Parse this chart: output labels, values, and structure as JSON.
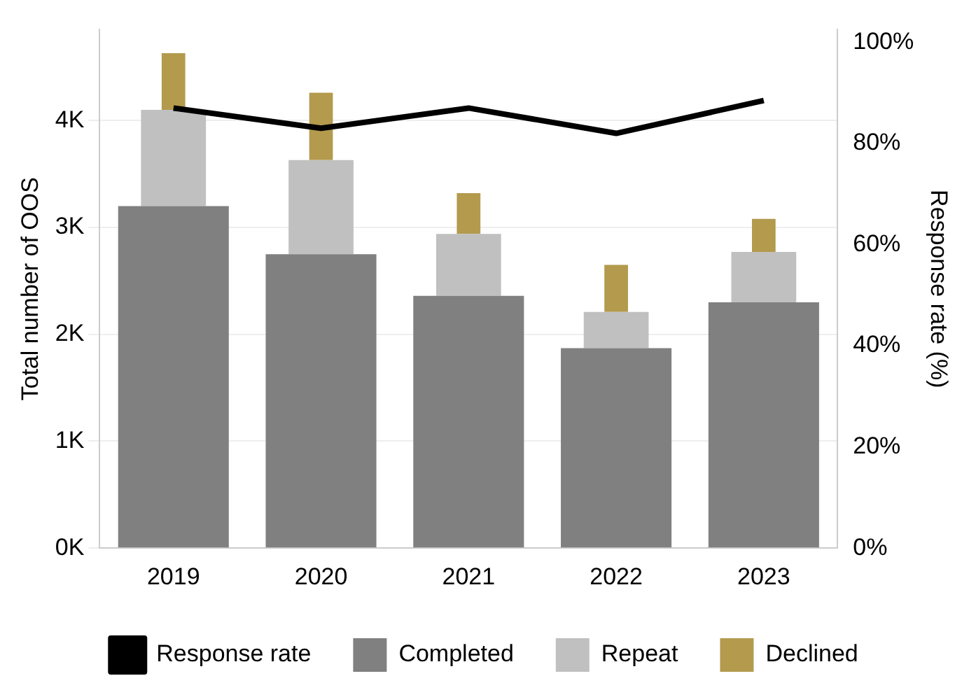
{
  "chart_data": {
    "type": "bar",
    "stacked": true,
    "categories": [
      "2019",
      "2020",
      "2021",
      "2022",
      "2023"
    ],
    "series": [
      {
        "name": "Completed",
        "color": "#808080",
        "values": [
          3200,
          2750,
          2360,
          1870,
          2300
        ]
      },
      {
        "name": "Repeat",
        "color": "#c0c0c0",
        "values": [
          900,
          880,
          580,
          340,
          470
        ]
      },
      {
        "name": "Declined",
        "color": "#b39a4d",
        "values": [
          530,
          630,
          380,
          440,
          310
        ]
      },
      {
        "name": "Response rate",
        "type": "line",
        "axis": "y2",
        "color": "#000000",
        "values": [
          87,
          83,
          87,
          82,
          88.5
        ]
      }
    ],
    "ylabel": "Total number of OOS",
    "y2label": "Response rate (%)",
    "ylim": [
      0,
      4850
    ],
    "yticks": [
      {
        "value": 0,
        "label": "0K"
      },
      {
        "value": 1000,
        "label": "1K"
      },
      {
        "value": 2000,
        "label": "2K"
      },
      {
        "value": 3000,
        "label": "3K"
      },
      {
        "value": 4000,
        "label": "4K"
      }
    ],
    "y2lim": [
      0,
      102.5
    ],
    "y2ticks": [
      {
        "value": 0,
        "label": "0%"
      },
      {
        "value": 20,
        "label": "20%"
      },
      {
        "value": 40,
        "label": "40%"
      },
      {
        "value": 60,
        "label": "60%"
      },
      {
        "value": 80,
        "label": "80%"
      },
      {
        "value": 100,
        "label": "100%"
      }
    ],
    "grid": "y",
    "legend": "bottom",
    "marker": "none"
  }
}
